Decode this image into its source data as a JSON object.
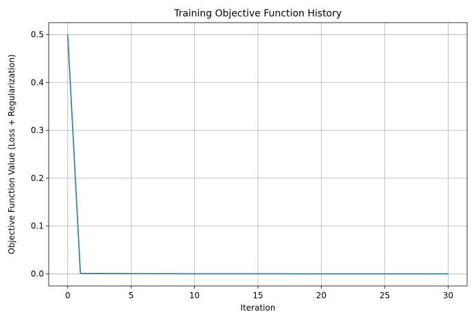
{
  "chart_data": {
    "type": "line",
    "title": "Training Objective Function History",
    "xlabel": "Iteration",
    "ylabel": "Objective Function Value (Loss + Regularization)",
    "xlim": [
      -1.5,
      31.5
    ],
    "ylim": [
      -0.025,
      0.525
    ],
    "x_ticks": [
      0,
      5,
      10,
      15,
      20,
      25,
      30
    ],
    "y_ticks": [
      0.0,
      0.1,
      0.2,
      0.3,
      0.4,
      0.5
    ],
    "x_tick_labels": [
      "0",
      "5",
      "10",
      "15",
      "20",
      "25",
      "30"
    ],
    "y_tick_labels": [
      "0.0",
      "0.1",
      "0.2",
      "0.3",
      "0.4",
      "0.5"
    ],
    "grid": true,
    "legend": "none",
    "series": [
      {
        "color": "#1f77b4",
        "x": [
          0,
          1,
          2,
          3,
          4,
          5,
          6,
          7,
          8,
          9,
          10,
          11,
          12,
          13,
          14,
          15,
          16,
          17,
          18,
          19,
          20,
          21,
          22,
          23,
          24,
          25,
          26,
          27,
          28,
          29,
          30
        ],
        "y": [
          0.5,
          0.0012,
          0.0011,
          0.001,
          0.0009,
          0.0008,
          0.0006,
          0.0005,
          0.0005,
          0.0004,
          0.0004,
          0.0004,
          0.0003,
          0.0003,
          0.0003,
          0.0003,
          0.0003,
          0.0003,
          0.0002,
          0.0002,
          0.0002,
          0.0002,
          0.0002,
          0.0002,
          0.0002,
          0.0002,
          0.0002,
          0.0002,
          0.0002,
          0.0002,
          0.0002
        ]
      }
    ]
  },
  "colors": {
    "line": "#1f77b4",
    "grid": "#b0b0b0",
    "axes": "#000000",
    "background": "#ffffff"
  }
}
